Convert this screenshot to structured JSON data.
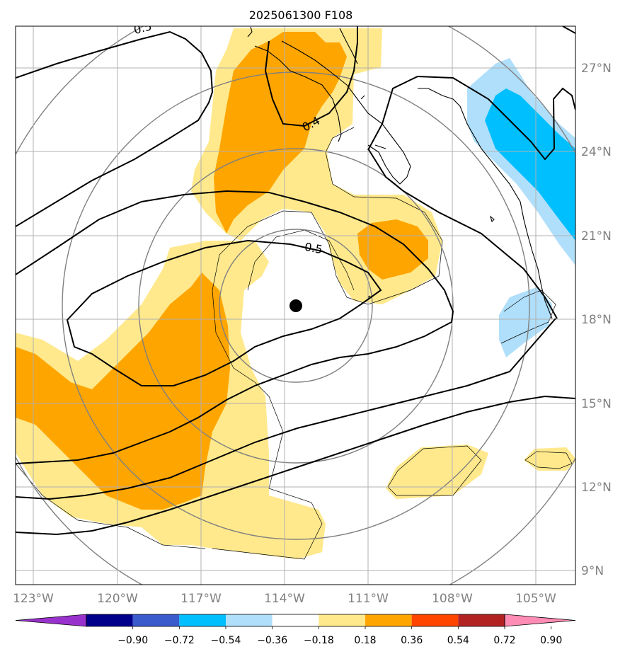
{
  "title": "2025061300 F108",
  "lon_labels": [
    "123°W",
    "120°W",
    "117°W",
    "114°W",
    "111°W",
    "108°W",
    "105°W"
  ],
  "lat_labels": [
    "27°N",
    "24°N",
    "21°N",
    "18°N",
    "15°N",
    "12°N",
    "9°N"
  ],
  "contour_labels": [
    "0.5",
    "0.4",
    "0.5"
  ],
  "colorbar": {
    "ticks": [
      "−0.90",
      "−0.72",
      "−0.54",
      "−0.36",
      "−0.18",
      "0.18",
      "0.36",
      "0.54",
      "0.72",
      "0.90"
    ],
    "colors": [
      "#9932cc",
      "#00008b",
      "#3a5bcc",
      "#00bfff",
      "#afdffa",
      "#ffffff",
      "#ffe98c",
      "#ffa500",
      "#ff4500",
      "#b22222",
      "#ff8cb4"
    ]
  },
  "fill_colors": {
    "light_yellow": "#ffe98c",
    "orange": "#ffa500",
    "light_blue": "#afdffa",
    "deep_sky_blue": "#00bfff"
  },
  "storm_center": "black-dot-marker"
}
